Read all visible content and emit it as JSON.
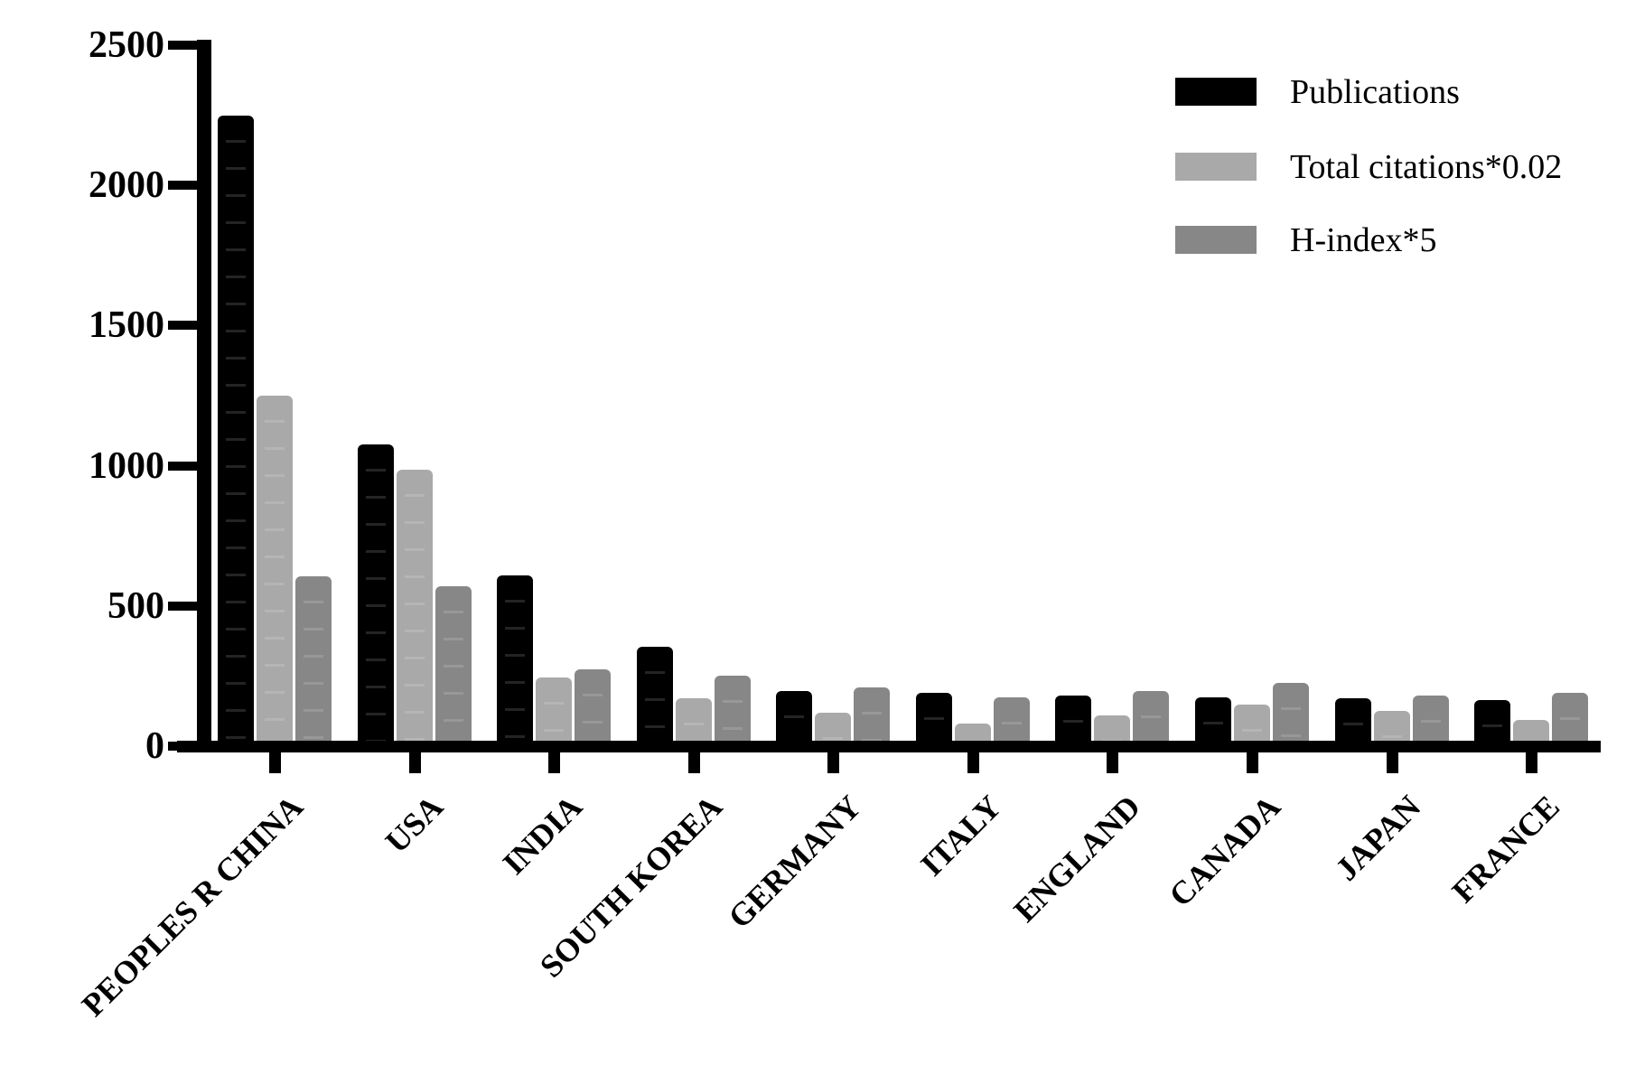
{
  "chart_data": {
    "type": "bar",
    "categories": [
      "PEOPLES R CHINA",
      "USA",
      "INDIA",
      "SOUTH KOREA",
      "GERMANY",
      "ITALY",
      "ENGLAND",
      "CANADA",
      "JAPAN",
      "FRANCE"
    ],
    "series": [
      {
        "name": "Publications",
        "color": "#000000",
        "values": [
          2250,
          1075,
          610,
          355,
          195,
          190,
          180,
          175,
          170,
          165
        ]
      },
      {
        "name": "Total citations*0.02",
        "color": "#A9A9A9",
        "values": [
          1250,
          985,
          245,
          170,
          120,
          80,
          110,
          148,
          125,
          95
        ]
      },
      {
        "name": "H-index*5",
        "color": "#878787",
        "values": [
          605,
          570,
          275,
          250,
          210,
          175,
          195,
          225,
          180,
          190
        ]
      }
    ],
    "yticks": [
      0,
      500,
      1000,
      1500,
      2000,
      2500
    ],
    "ylim": [
      0,
      2500
    ],
    "grid": false,
    "legend_position": "top-right",
    "axis_color": "#000000"
  }
}
